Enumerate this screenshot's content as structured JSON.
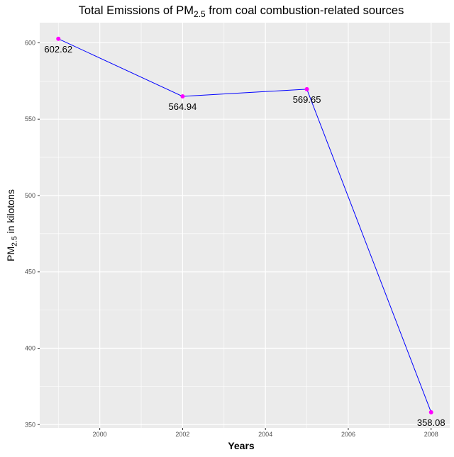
{
  "chart_data": {
    "type": "line",
    "title": {
      "prefix": "Total Emissions of PM",
      "subscript": "2.5",
      "suffix": " from coal combustion-related sources"
    },
    "xlabel": "Years",
    "ylabel": {
      "prefix": "PM",
      "subscript": "2.5",
      "suffix": " in kilotons"
    },
    "x": [
      1999,
      2002,
      2005,
      2008
    ],
    "series": [
      {
        "values": [
          602.62,
          564.94,
          569.65,
          358.08
        ],
        "labels": [
          "602.62",
          "564.94",
          "569.65",
          "358.08"
        ]
      }
    ],
    "xlim": [
      1998.55,
      2008.45
    ],
    "ylim": [
      347.8,
      613.2
    ],
    "x_ticks": [
      2000,
      2002,
      2004,
      2006,
      2008
    ],
    "x_minor_ticks": [
      1999,
      2001,
      2003,
      2005,
      2007
    ],
    "y_ticks": [
      350,
      400,
      450,
      500,
      550,
      600
    ],
    "y_minor_ticks": [
      375,
      425,
      475,
      525,
      575
    ],
    "x_tick_labels": [
      "2000",
      "2002",
      "2004",
      "2006",
      "2008"
    ],
    "y_tick_labels": [
      "350",
      "400",
      "450",
      "500",
      "550",
      "600"
    ],
    "grid": true,
    "line_color": "#0000ff",
    "point_color": "#ff00ff",
    "panel_color": "#ebebeb",
    "grid_color": "#ffffff"
  }
}
